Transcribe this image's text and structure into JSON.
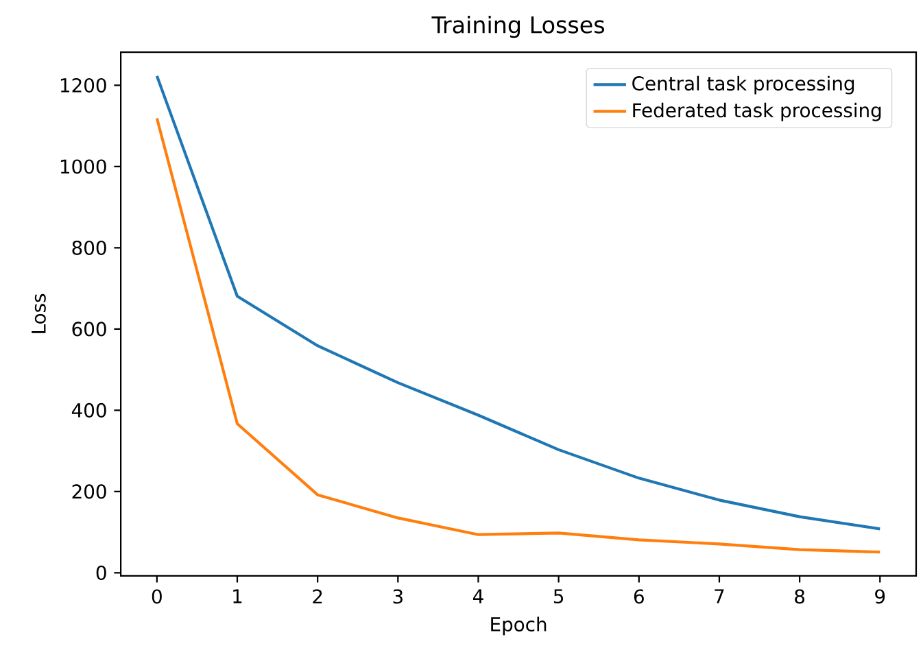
{
  "chart_data": {
    "type": "line",
    "title": "Training Losses",
    "xlabel": "Epoch",
    "ylabel": "Loss",
    "x": [
      0,
      1,
      2,
      3,
      4,
      5,
      6,
      7,
      8,
      9
    ],
    "series": [
      {
        "name": "Central task processing",
        "color": "#1f77b4",
        "values": [
          1223,
          681,
          559,
          468,
          388,
          303,
          233,
          179,
          138,
          108
        ]
      },
      {
        "name": "Federated task processing",
        "color": "#ff7f0e",
        "values": [
          1119,
          367,
          192,
          135,
          94,
          98,
          81,
          71,
          57,
          51
        ]
      }
    ],
    "xlim": [
      -0.45,
      9.45
    ],
    "ylim": [
      -7.6,
      1281.6
    ],
    "xticks": [
      0,
      1,
      2,
      3,
      4,
      5,
      6,
      7,
      8,
      9
    ],
    "yticks": [
      0,
      200,
      400,
      600,
      800,
      1000,
      1200
    ],
    "legend": "top right",
    "grid": false,
    "marker": "none",
    "line_style": "solid"
  }
}
